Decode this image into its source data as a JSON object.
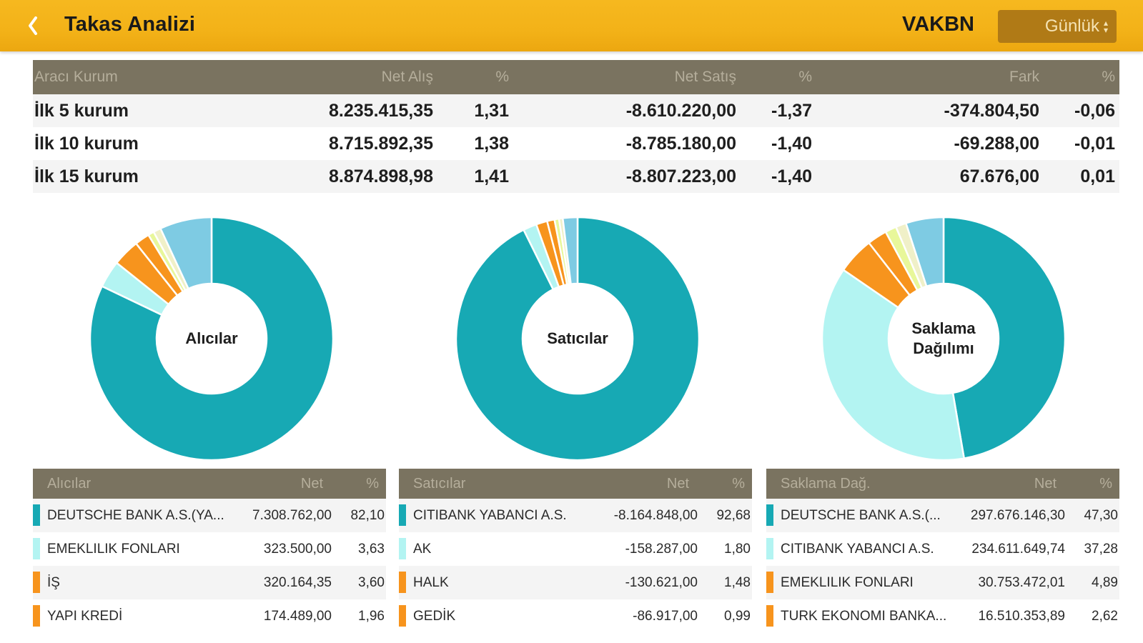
{
  "header": {
    "title": "Takas Analizi",
    "symbol": "VAKBN",
    "period": "Günlük"
  },
  "summary": {
    "columns": [
      "Aracı Kurum",
      "Net Alış",
      "%",
      "Net Satış",
      "%",
      "Fark",
      "%"
    ],
    "rows": [
      [
        "İlk 5 kurum",
        "8.235.415,35",
        "1,31",
        "-8.610.220,00",
        "-1,37",
        "-374.804,50",
        "-0,06"
      ],
      [
        "İlk 10 kurum",
        "8.715.892,35",
        "1,38",
        "-8.785.180,00",
        "-1,40",
        "-69.288,00",
        "-0,01"
      ],
      [
        "İlk 15 kurum",
        "8.874.898,98",
        "1,41",
        "-8.807.223,00",
        "-1,40",
        "67.676,00",
        "0,01"
      ]
    ]
  },
  "colors": {
    "header_bg": "#f3b218",
    "table_head_bg": "#7a7360",
    "teal": "#17a9b4",
    "light_cyan": "#b3f4f2",
    "orange": "#f7941d",
    "light_yellow": "#e8f79a",
    "light_blue": "#7ecbe3"
  },
  "chart_data": [
    {
      "type": "pie",
      "title": "Alıcılar",
      "categories": [
        "DEUTSCHE BANK A.S.(YA...",
        "EMEKLILIK FONLARI",
        "İŞ",
        "YAPI KREDİ",
        "",
        "",
        ""
      ],
      "values": [
        82.1,
        3.63,
        3.6,
        1.96,
        0.8,
        1.0,
        6.91
      ],
      "colors": [
        "#17a9b4",
        "#b3f4f2",
        "#f7941d",
        "#f7941d",
        "#e8f79a",
        "#f0f0c8",
        "#7ecbe3"
      ]
    },
    {
      "type": "pie",
      "title": "Satıcılar",
      "categories": [
        "CITIBANK YABANCI A.S.",
        "AK",
        "HALK",
        "GEDİK",
        "",
        "",
        ""
      ],
      "values": [
        92.68,
        1.8,
        1.48,
        0.99,
        0.6,
        0.5,
        1.95
      ],
      "colors": [
        "#17a9b4",
        "#b3f4f2",
        "#f7941d",
        "#f7941d",
        "#e8f79a",
        "#f0f0c8",
        "#7ecbe3"
      ]
    },
    {
      "type": "pie",
      "title": "Saklama\nDağılımı",
      "categories": [
        "DEUTSCHE BANK A.S.(...",
        "CITIBANK YABANCI A.S.",
        "EMEKLILIK FONLARI",
        "TURK EKONOMI BANKA...",
        "",
        "",
        ""
      ],
      "values": [
        47.3,
        37.28,
        4.89,
        2.62,
        1.5,
        1.4,
        5.01
      ],
      "colors": [
        "#17a9b4",
        "#b3f4f2",
        "#f7941d",
        "#f7941d",
        "#e8f79a",
        "#f0f0c8",
        "#7ecbe3"
      ]
    }
  ],
  "tables": [
    {
      "columns": [
        "Alıcılar",
        "Net",
        "%"
      ],
      "rows": [
        {
          "name": "DEUTSCHE BANK A.S.(YA...",
          "net": "7.308.762,00",
          "pct": "82,10",
          "color": "#17a9b4"
        },
        {
          "name": "EMEKLILIK FONLARI",
          "net": "323.500,00",
          "pct": "3,63",
          "color": "#b3f4f2"
        },
        {
          "name": "İŞ",
          "net": "320.164,35",
          "pct": "3,60",
          "color": "#f7941d"
        },
        {
          "name": "YAPI KREDİ",
          "net": "174.489,00",
          "pct": "1,96",
          "color": "#f7941d"
        }
      ]
    },
    {
      "columns": [
        "Satıcılar",
        "Net",
        "%"
      ],
      "rows": [
        {
          "name": "CITIBANK YABANCI A.S.",
          "net": "-8.164.848,00",
          "pct": "92,68",
          "color": "#17a9b4"
        },
        {
          "name": "AK",
          "net": "-158.287,00",
          "pct": "1,80",
          "color": "#b3f4f2"
        },
        {
          "name": "HALK",
          "net": "-130.621,00",
          "pct": "1,48",
          "color": "#f7941d"
        },
        {
          "name": "GEDİK",
          "net": "-86.917,00",
          "pct": "0,99",
          "color": "#f7941d"
        }
      ]
    },
    {
      "columns": [
        "Saklama Dağ.",
        "Net",
        "%"
      ],
      "rows": [
        {
          "name": "DEUTSCHE BANK A.S.(...",
          "net": "297.676.146,30",
          "pct": "47,30",
          "color": "#17a9b4"
        },
        {
          "name": "CITIBANK YABANCI A.S.",
          "net": "234.611.649,74",
          "pct": "37,28",
          "color": "#b3f4f2"
        },
        {
          "name": "EMEKLILIK FONLARI",
          "net": "30.753.472,01",
          "pct": "4,89",
          "color": "#f7941d"
        },
        {
          "name": "TURK EKONOMI BANKA...",
          "net": "16.510.353,89",
          "pct": "2,62",
          "color": "#f7941d"
        }
      ]
    }
  ]
}
